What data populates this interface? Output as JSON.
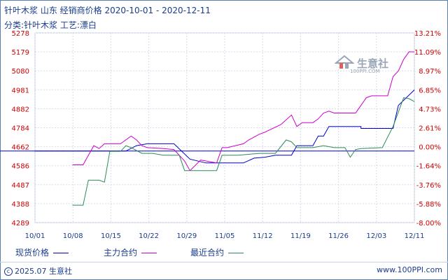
{
  "title": "针叶木浆 山东 经销商价格 2020-10-01 - 2020-12-11",
  "subtitle": "分类:针叶木浆 工艺:漂白",
  "watermark": "生意社",
  "watermark_sub": "100PPI.COM",
  "footer": {
    "copyright": "2025.07 生意社",
    "site": "www.100PPI.com"
  },
  "colors": {
    "spot": "#0000cc",
    "main_contract": "#cc00cc",
    "recent_contract": "#2e8b57",
    "axis_text_left": "#cc0000",
    "baseline": "#0000cc"
  },
  "chart_data": {
    "type": "line",
    "title": "针叶木浆 山东 经销商价格 2020-10-01 - 2020-12-11",
    "x_ticks": [
      "10/01",
      "10/08",
      "10/15",
      "10/22",
      "10/29",
      "11/05",
      "11/12",
      "11/19",
      "11/26",
      "12/03",
      "12/11"
    ],
    "y_left_ticks": [
      "5278",
      "5179",
      "5080",
      "4981",
      "4882",
      "4784",
      "4662",
      "4586",
      "4487",
      "4388",
      "4289"
    ],
    "y_left_range": [
      4289,
      5278
    ],
    "y_right_ticks": [
      "13.21%",
      "11.09%",
      "8.97%",
      "6.85%",
      "4.73%",
      "2.61%",
      "0.00%",
      "-1.64%",
      "-3.76%",
      "-5.88%",
      "-8.00%"
    ],
    "y_right_range": [
      -8.0,
      13.21
    ],
    "baseline_value": 4662,
    "legend_position": "bottom",
    "grid": true,
    "series": [
      {
        "name": "现货价格",
        "color": "#0000cc",
        "points": [
          [
            "2020-10-01",
            4662
          ],
          [
            "2020-10-18",
            4662
          ],
          [
            "2020-10-20",
            4690
          ],
          [
            "2020-10-22",
            4700
          ],
          [
            "2020-10-27",
            4700
          ],
          [
            "2020-10-30",
            4620
          ],
          [
            "2020-11-02",
            4600
          ],
          [
            "2020-11-09",
            4600
          ],
          [
            "2020-11-11",
            4625
          ],
          [
            "2020-11-13",
            4630
          ],
          [
            "2020-11-15",
            4640
          ],
          [
            "2020-11-18",
            4640
          ],
          [
            "2020-11-19",
            4690
          ],
          [
            "2020-11-22",
            4690
          ],
          [
            "2020-11-23",
            4740
          ],
          [
            "2020-11-24",
            4740
          ],
          [
            "2020-11-25",
            4790
          ],
          [
            "2020-12-01",
            4790
          ],
          [
            "2020-12-01",
            4780
          ],
          [
            "2020-12-07",
            4780
          ],
          [
            "2020-12-08",
            4900
          ],
          [
            "2020-12-11",
            4981
          ]
        ]
      },
      {
        "name": "主力合约",
        "color": "#cc00cc",
        "points": [
          [
            "2020-10-08",
            4590
          ],
          [
            "2020-10-10",
            4590
          ],
          [
            "2020-10-11",
            4640
          ],
          [
            "2020-10-12",
            4690
          ],
          [
            "2020-10-13",
            4675
          ],
          [
            "2020-10-14",
            4700
          ],
          [
            "2020-10-17",
            4700
          ],
          [
            "2020-10-19",
            4740
          ],
          [
            "2020-10-20",
            4720
          ],
          [
            "2020-10-21",
            4690
          ],
          [
            "2020-10-22",
            4680
          ],
          [
            "2020-10-25",
            4675
          ],
          [
            "2020-10-27",
            4670
          ],
          [
            "2020-10-29",
            4610
          ],
          [
            "2020-10-30",
            4560
          ],
          [
            "2020-11-01",
            4615
          ],
          [
            "2020-11-02",
            4610
          ],
          [
            "2020-11-04",
            4600
          ],
          [
            "2020-11-05",
            4680
          ],
          [
            "2020-11-06",
            4680
          ],
          [
            "2020-11-09",
            4700
          ],
          [
            "2020-11-10",
            4720
          ],
          [
            "2020-11-12",
            4750
          ],
          [
            "2020-11-13",
            4760
          ],
          [
            "2020-11-16",
            4800
          ],
          [
            "2020-11-18",
            4850
          ],
          [
            "2020-11-19",
            4790
          ],
          [
            "2020-11-20",
            4810
          ],
          [
            "2020-11-22",
            4810
          ],
          [
            "2020-11-23",
            4830
          ],
          [
            "2020-11-24",
            4860
          ],
          [
            "2020-11-25",
            4870
          ],
          [
            "2020-11-26",
            4860
          ],
          [
            "2020-11-30",
            4860
          ],
          [
            "2020-12-01",
            4900
          ],
          [
            "2020-12-02",
            4940
          ],
          [
            "2020-12-03",
            4950
          ],
          [
            "2020-12-06",
            4950
          ],
          [
            "2020-12-07",
            5050
          ],
          [
            "2020-12-08",
            5080
          ],
          [
            "2020-12-09",
            5140
          ],
          [
            "2020-12-10",
            5180
          ],
          [
            "2020-12-11",
            5179
          ]
        ]
      },
      {
        "name": "最近合约",
        "color": "#2e8b57",
        "points": [
          [
            "2020-10-08",
            4380
          ],
          [
            "2020-10-10",
            4380
          ],
          [
            "2020-10-11",
            4510
          ],
          [
            "2020-10-13",
            4510
          ],
          [
            "2020-10-14",
            4500
          ],
          [
            "2020-10-15",
            4660
          ],
          [
            "2020-10-17",
            4660
          ],
          [
            "2020-10-18",
            4690
          ],
          [
            "2020-10-19",
            4680
          ],
          [
            "2020-10-21",
            4650
          ],
          [
            "2020-10-23",
            4650
          ],
          [
            "2020-10-25",
            4640
          ],
          [
            "2020-10-28",
            4640
          ],
          [
            "2020-10-29",
            4560
          ],
          [
            "2020-11-04",
            4560
          ],
          [
            "2020-11-05",
            4640
          ],
          [
            "2020-11-08",
            4640
          ],
          [
            "2020-11-12",
            4650
          ],
          [
            "2020-11-15",
            4650
          ],
          [
            "2020-11-17",
            4720
          ],
          [
            "2020-11-18",
            4710
          ],
          [
            "2020-11-19",
            4680
          ],
          [
            "2020-11-20",
            4680
          ],
          [
            "2020-11-22",
            4680
          ],
          [
            "2020-11-24",
            4690
          ],
          [
            "2020-11-26",
            4680
          ],
          [
            "2020-11-28",
            4680
          ],
          [
            "2020-11-29",
            4630
          ],
          [
            "2020-11-30",
            4670
          ],
          [
            "2020-12-01",
            4675
          ],
          [
            "2020-12-05",
            4680
          ],
          [
            "2020-12-07",
            4790
          ],
          [
            "2020-12-09",
            4940
          ],
          [
            "2020-12-10",
            4935
          ],
          [
            "2020-12-11",
            4920
          ]
        ]
      }
    ]
  }
}
